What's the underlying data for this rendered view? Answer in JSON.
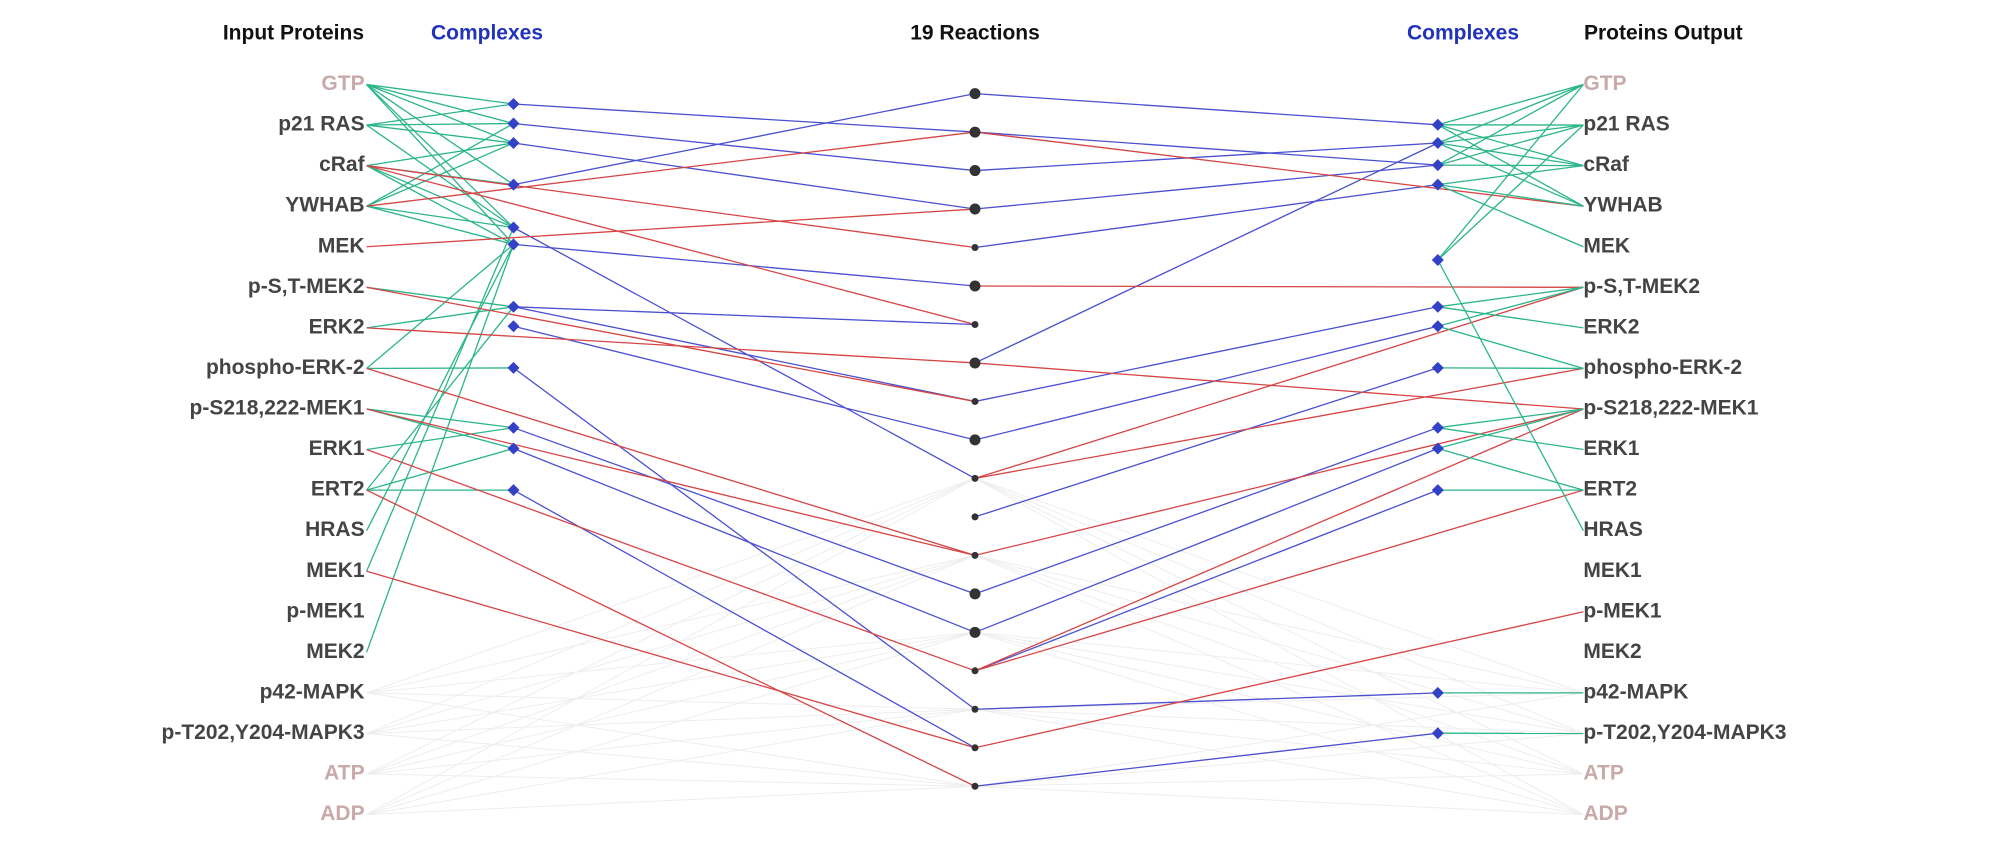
{
  "headers": {
    "input": "Input Proteins",
    "complexes_left": "Complexes",
    "reactions": "19 Reactions",
    "complexes_right": "Complexes",
    "output": "Proteins Output"
  },
  "inputs": [
    "GTP",
    "p21 RAS",
    "cRaf",
    "YWHAB",
    "MEK",
    "p-S,T-MEK2",
    "ERK2",
    "phospho-ERK-2",
    "p-S218,222-MEK1",
    "ERK1",
    "ERT2",
    "HRAS",
    "MEK1",
    "p-MEK1",
    "MEK2",
    "p42-MAPK",
    "p-T202,Y204-MAPK3",
    "ATP",
    "ADP"
  ],
  "outputs": [
    "GTP",
    "p21 RAS",
    "cRaf",
    "YWHAB",
    "MEK",
    "p-S,T-MEK2",
    "ERK2",
    "phospho-ERK-2",
    "p-S218,222-MEK1",
    "ERK1",
    "ERT2",
    "HRAS",
    "MEK1",
    "p-MEK1",
    "MEK2",
    "p42-MAPK",
    "p-T202,Y204-MAPK3",
    "ATP",
    "ADP"
  ]
}
